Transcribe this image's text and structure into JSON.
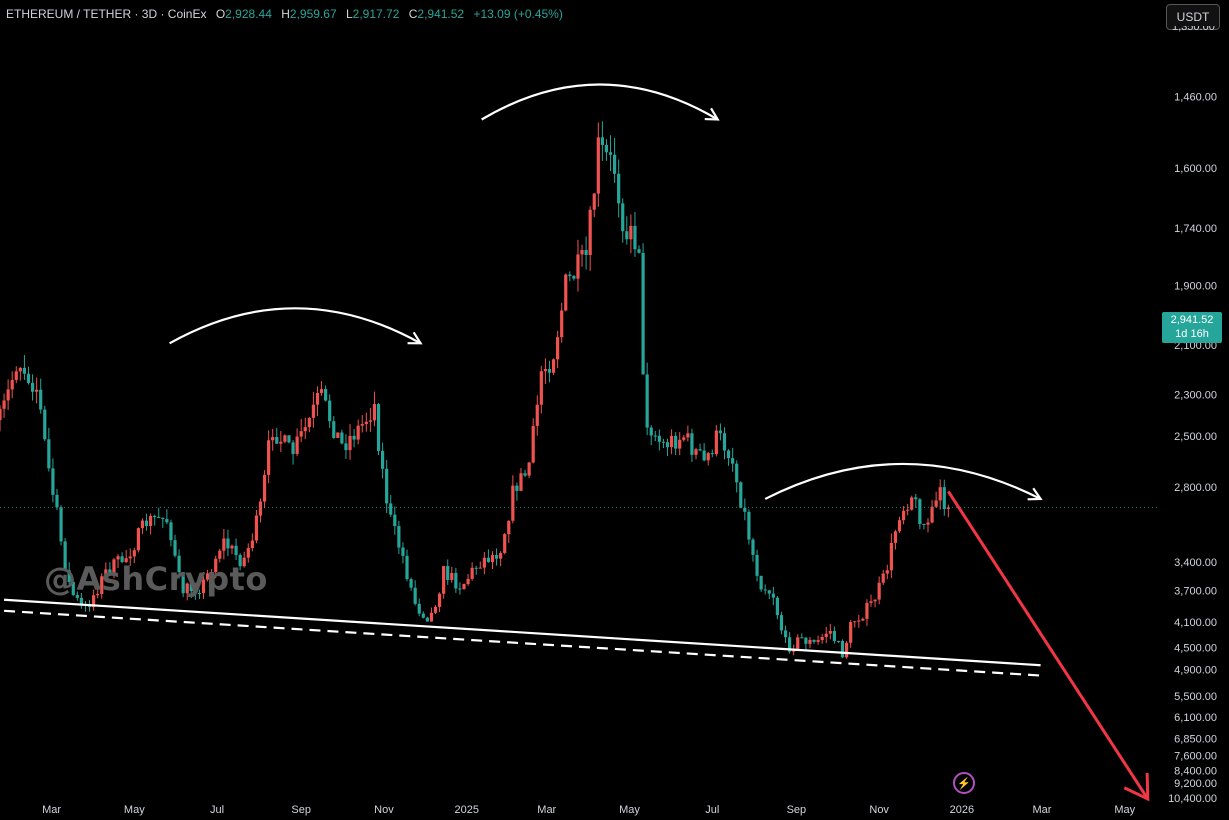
{
  "header": {
    "symbol": "ETHEREUM / TETHER · 3D · CoinEx",
    "open_label": "O",
    "open": "2,928.44",
    "high_label": "H",
    "high": "2,959.67",
    "low_label": "L",
    "low": "2,917.72",
    "close_label": "C",
    "close": "2,941.52",
    "change": "+13.09 (+0.45%)"
  },
  "currency_button": "USDT",
  "watermark": "@AshCrypto",
  "last_price": {
    "value": "2,941.52",
    "countdown": "1d 16h"
  },
  "colors": {
    "up": "#26a69a",
    "down": "#ef5350",
    "arrow": "#f23645",
    "background": "#000000",
    "annotation": "#ffffff"
  },
  "chart_data": {
    "type": "candlestick",
    "y_axis": {
      "scale": "reciprocal (inverted)",
      "range": [
        1350,
        10600
      ],
      "tick_labels": [
        "1,460.00",
        "1,600.00",
        "1,740.00",
        "1,900.00",
        "2,100.00",
        "2,300.00",
        "2,500.00",
        "2,800.00",
        "3,400.00",
        "3,700.00",
        "4,100.00",
        "4,500.00",
        "4,900.00",
        "5,500.00",
        "6,100.00",
        "6,850.00",
        "7,600.00",
        "8,400.00",
        "9,200.00",
        "10,400.00"
      ],
      "tick_values": [
        1460,
        1600,
        1740,
        1900,
        2100,
        2300,
        2500,
        2800,
        3400,
        3700,
        4100,
        4500,
        4900,
        5500,
        6100,
        6850,
        7600,
        8400,
        9200,
        10400
      ]
    },
    "x_axis": {
      "range": [
        "2024-01-23",
        "2026-05-27"
      ],
      "tick_labels": [
        "Mar",
        "May",
        "Jul",
        "Sep",
        "Nov",
        "2025",
        "Mar",
        "May",
        "Jul",
        "Sep",
        "Nov",
        "2026",
        "Mar",
        "May"
      ],
      "tick_dates": [
        "2024-03-01",
        "2024-05-01",
        "2024-07-01",
        "2024-09-01",
        "2024-11-01",
        "2025-01-01",
        "2025-03-01",
        "2025-05-01",
        "2025-07-01",
        "2025-09-01",
        "2025-11-01",
        "2026-01-01",
        "2026-03-01",
        "2026-05-01"
      ]
    },
    "price_anchors": [
      {
        "date": "2024-01-23",
        "price": 2420
      },
      {
        "date": "2024-02-05",
        "price": 2150
      },
      {
        "date": "2024-02-20",
        "price": 2280
      },
      {
        "date": "2024-03-05",
        "price": 3000
      },
      {
        "date": "2024-03-15",
        "price": 3700
      },
      {
        "date": "2024-03-25",
        "price": 3950
      },
      {
        "date": "2024-04-10",
        "price": 3500
      },
      {
        "date": "2024-04-25",
        "price": 3350
      },
      {
        "date": "2024-05-10",
        "price": 3050
      },
      {
        "date": "2024-05-25",
        "price": 3000
      },
      {
        "date": "2024-06-05",
        "price": 3700
      },
      {
        "date": "2024-06-20",
        "price": 3650
      },
      {
        "date": "2024-07-05",
        "price": 3200
      },
      {
        "date": "2024-07-20",
        "price": 3400
      },
      {
        "date": "2024-08-01",
        "price": 3000
      },
      {
        "date": "2024-08-10",
        "price": 2450
      },
      {
        "date": "2024-08-25",
        "price": 2600
      },
      {
        "date": "2024-09-05",
        "price": 2450
      },
      {
        "date": "2024-09-15",
        "price": 2300
      },
      {
        "date": "2024-10-01",
        "price": 2550
      },
      {
        "date": "2024-10-15",
        "price": 2450
      },
      {
        "date": "2024-10-25",
        "price": 2350
      },
      {
        "date": "2024-11-05",
        "price": 3000
      },
      {
        "date": "2024-11-15",
        "price": 3350
      },
      {
        "date": "2024-11-25",
        "price": 3900
      },
      {
        "date": "2024-12-05",
        "price": 4050
      },
      {
        "date": "2024-12-15",
        "price": 3500
      },
      {
        "date": "2024-12-28",
        "price": 3650
      },
      {
        "date": "2025-01-10",
        "price": 3400
      },
      {
        "date": "2025-01-25",
        "price": 3300
      },
      {
        "date": "2025-02-05",
        "price": 2800
      },
      {
        "date": "2025-02-15",
        "price": 2700
      },
      {
        "date": "2025-02-25",
        "price": 2200
      },
      {
        "date": "2025-03-05",
        "price": 2150
      },
      {
        "date": "2025-03-15",
        "price": 1900
      },
      {
        "date": "2025-03-30",
        "price": 1820
      },
      {
        "date": "2025-04-08",
        "price": 1560
      },
      {
        "date": "2025-04-20",
        "price": 1600
      },
      {
        "date": "2025-04-28",
        "price": 1750
      },
      {
        "date": "2025-05-08",
        "price": 1780
      },
      {
        "date": "2025-05-12",
        "price": 2400
      },
      {
        "date": "2025-05-25",
        "price": 2550
      },
      {
        "date": "2025-06-10",
        "price": 2500
      },
      {
        "date": "2025-06-25",
        "price": 2650
      },
      {
        "date": "2025-07-05",
        "price": 2500
      },
      {
        "date": "2025-07-15",
        "price": 2600
      },
      {
        "date": "2025-07-25",
        "price": 3000
      },
      {
        "date": "2025-08-05",
        "price": 3600
      },
      {
        "date": "2025-08-15",
        "price": 3750
      },
      {
        "date": "2025-08-25",
        "price": 4500
      },
      {
        "date": "2025-09-05",
        "price": 4350
      },
      {
        "date": "2025-09-15",
        "price": 4450
      },
      {
        "date": "2025-09-25",
        "price": 4200
      },
      {
        "date": "2025-10-05",
        "price": 4600
      },
      {
        "date": "2025-10-12",
        "price": 4100
      },
      {
        "date": "2025-10-25",
        "price": 3900
      },
      {
        "date": "2025-11-05",
        "price": 3550
      },
      {
        "date": "2025-11-15",
        "price": 3000
      },
      {
        "date": "2025-11-25",
        "price": 2850
      },
      {
        "date": "2025-12-05",
        "price": 3100
      },
      {
        "date": "2025-12-15",
        "price": 2850
      },
      {
        "date": "2025-12-22",
        "price": 2941.52
      }
    ],
    "current_close": 2941.52,
    "annotations": {
      "arcs": [
        {
          "shape": "left-shoulder",
          "from": {
            "date": "2024-05-27",
            "price": 2050
          },
          "to": {
            "date": "2024-11-28",
            "price": 2050
          }
        },
        {
          "shape": "head",
          "from": {
            "date": "2025-01-12",
            "price": 1480
          },
          "to": {
            "date": "2025-07-05",
            "price": 1480
          }
        },
        {
          "shape": "right-shoulder",
          "from": {
            "date": "2025-08-09",
            "price": 2800
          },
          "to": {
            "date": "2026-02-28",
            "price": 2800
          }
        }
      ],
      "neckline": {
        "from": {
          "date": "2024-01-26",
          "price": 3810
        },
        "to": {
          "date": "2026-02-28",
          "price": 4820
        }
      },
      "neckline_dashed": {
        "from": {
          "date": "2024-01-26",
          "price": 3950
        },
        "to": {
          "date": "2026-02-28",
          "price": 5030
        }
      },
      "projection_arrow": {
        "from": {
          "date": "2025-12-22",
          "price": 2830
        },
        "to": {
          "date": "2026-05-18",
          "price": 10500
        }
      }
    }
  }
}
